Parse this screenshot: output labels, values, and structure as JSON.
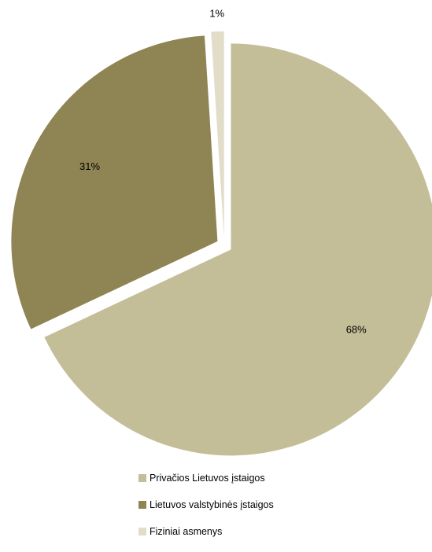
{
  "chart_data": {
    "type": "pie",
    "title": "",
    "categories": [
      "Privačios Lietuvos įstaigos",
      "Lietuvos valstybinės įstaigos",
      "Fiziniai asmenys"
    ],
    "values": [
      68,
      31,
      1
    ],
    "value_labels": [
      "68%",
      "31%",
      "1%"
    ],
    "colors": [
      "#C4BE98",
      "#8F8453",
      "#E1DDC8"
    ],
    "exploded": true,
    "legend_position": "bottom"
  },
  "legend": {
    "items": [
      {
        "label": "Privačios Lietuvos įstaigos",
        "color": "#C4BE98"
      },
      {
        "label": "Lietuvos valstybinės įstaigos",
        "color": "#8F8453"
      },
      {
        "label": "Fiziniai asmenys",
        "color": "#E1DDC8"
      }
    ]
  }
}
